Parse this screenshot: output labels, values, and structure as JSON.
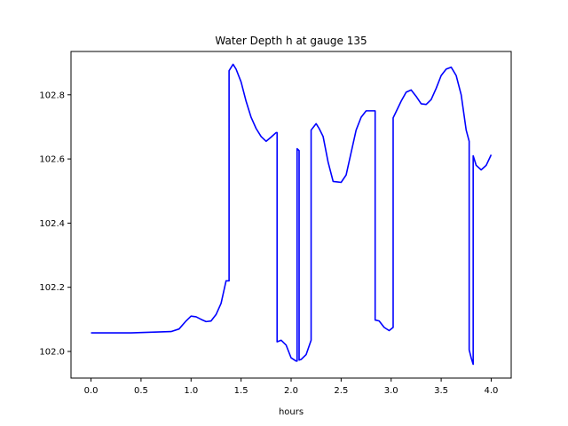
{
  "chart_data": {
    "type": "line",
    "title": "Water Depth h at gauge 135",
    "xlabel": "hours",
    "ylabel": "",
    "xlim": [
      -0.2,
      4.2
    ],
    "ylim": [
      101.917,
      102.935
    ],
    "xticks": [
      0.0,
      0.5,
      1.0,
      1.5,
      2.0,
      2.5,
      3.0,
      3.5,
      4.0
    ],
    "xtick_labels": [
      "0.0",
      "0.5",
      "1.0",
      "1.5",
      "2.0",
      "2.5",
      "3.0",
      "3.5",
      "4.0"
    ],
    "yticks": [
      102.0,
      102.2,
      102.4,
      102.6,
      102.8
    ],
    "ytick_labels": [
      "102.0",
      "102.2",
      "102.4",
      "102.6",
      "102.8"
    ],
    "grid": false,
    "legend": "none",
    "series": [
      {
        "color": "#0000ff",
        "x": [
          0.0,
          0.4,
          0.6,
          0.8,
          0.88,
          0.95,
          1.0,
          1.05,
          1.1,
          1.15,
          1.2,
          1.25,
          1.3,
          1.35,
          1.38,
          1.38,
          1.42,
          1.45,
          1.5,
          1.55,
          1.6,
          1.65,
          1.7,
          1.75,
          1.8,
          1.85,
          1.86,
          1.86,
          1.9,
          1.95,
          2.0,
          2.05,
          2.06,
          2.06,
          2.08,
          2.08,
          2.1,
          2.15,
          2.2,
          2.2,
          2.25,
          2.28,
          2.32,
          2.37,
          2.42,
          2.5,
          2.55,
          2.6,
          2.65,
          2.7,
          2.75,
          2.8,
          2.84,
          2.84,
          2.88,
          2.93,
          2.98,
          3.02,
          3.02,
          3.1,
          3.15,
          3.2,
          3.25,
          3.3,
          3.35,
          3.4,
          3.45,
          3.5,
          3.55,
          3.6,
          3.65,
          3.7,
          3.75,
          3.78,
          3.78,
          3.8,
          3.82,
          3.82,
          3.85,
          3.9,
          3.95,
          4.0
        ],
        "y": [
          102.058,
          102.058,
          102.06,
          102.062,
          102.07,
          102.095,
          102.11,
          102.108,
          102.1,
          102.093,
          102.095,
          102.115,
          102.15,
          102.22,
          102.22,
          102.875,
          102.895,
          102.88,
          102.84,
          102.78,
          102.73,
          102.695,
          102.67,
          102.655,
          102.668,
          102.682,
          102.682,
          102.03,
          102.035,
          102.02,
          101.98,
          101.97,
          101.97,
          102.632,
          102.626,
          101.973,
          101.975,
          101.99,
          102.035,
          102.69,
          102.71,
          102.695,
          102.67,
          102.59,
          102.53,
          102.527,
          102.55,
          102.62,
          102.69,
          102.73,
          102.75,
          102.75,
          102.75,
          102.098,
          102.095,
          102.075,
          102.065,
          102.075,
          102.728,
          102.78,
          102.808,
          102.815,
          102.795,
          102.772,
          102.77,
          102.785,
          102.82,
          102.86,
          102.88,
          102.886,
          102.86,
          102.8,
          102.69,
          102.655,
          102.005,
          101.98,
          101.96,
          102.61,
          102.58,
          102.566,
          102.58,
          102.613
        ]
      }
    ]
  }
}
